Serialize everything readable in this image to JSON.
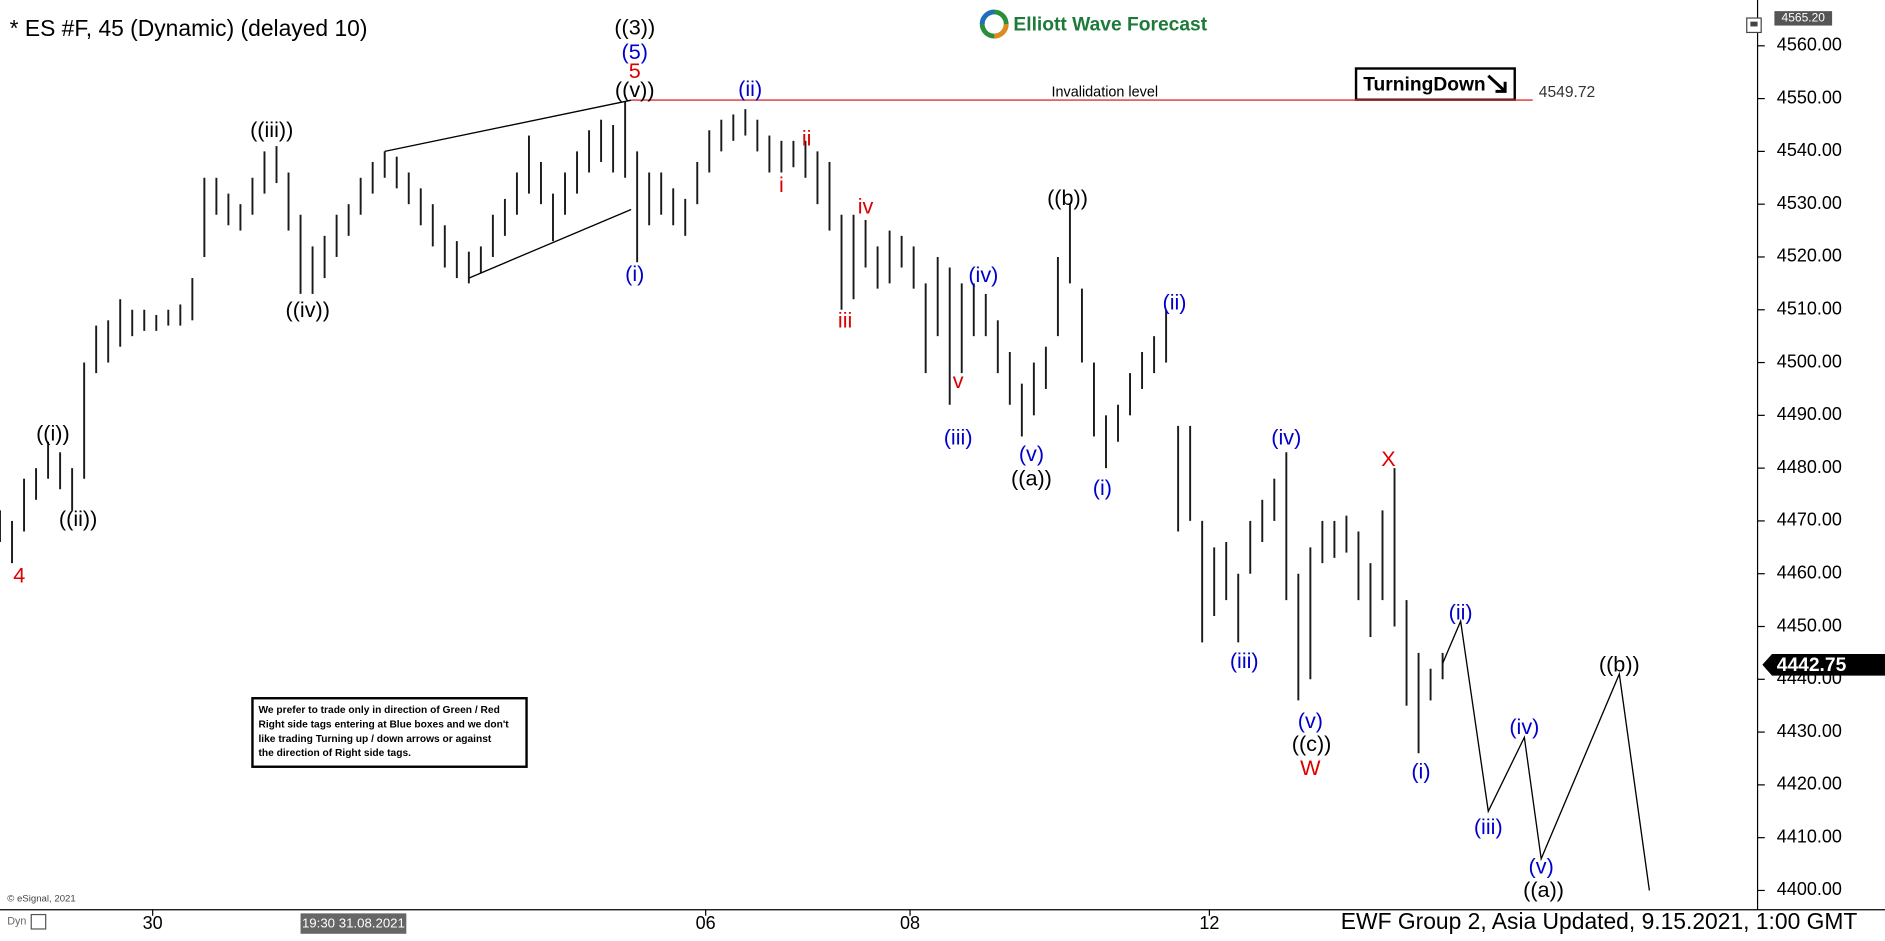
{
  "chart_data": {
    "type": "price-bars",
    "title": "* ES #F, 45 (Dynamic) (delayed 10)",
    "brand": "Elliott Wave Forecast",
    "footer": "EWF Group 2, Asia Updated, 9.15.2021, 1:00 GMT",
    "copyright": "© eSignal, 2021",
    "interval_label": "Dyn",
    "bar_color": "#1a1a1a",
    "xlim": [
      0,
      146
    ],
    "ylim": [
      4396.8,
      4566.4
    ],
    "xticks": [
      {
        "value": 12.7,
        "label": "30"
      },
      {
        "value": 58.7,
        "label": "06"
      },
      {
        "value": 75.7,
        "label": "08"
      },
      {
        "value": 100.6,
        "label": "12"
      }
    ],
    "cursor_label": {
      "value": 29.4,
      "label": "19:30 31.08.2021"
    },
    "yticks": [
      {
        "value": 4400,
        "label": "4400.00"
      },
      {
        "value": 4410,
        "label": "4410.00"
      },
      {
        "value": 4420,
        "label": "4420.00"
      },
      {
        "value": 4430,
        "label": "4430.00"
      },
      {
        "value": 4440,
        "label": "4440.00"
      },
      {
        "value": 4450,
        "label": "4450.00"
      },
      {
        "value": 4460,
        "label": "4460.00"
      },
      {
        "value": 4470,
        "label": "4470.00"
      },
      {
        "value": 4480,
        "label": "4480.00"
      },
      {
        "value": 4490,
        "label": "4490.00"
      },
      {
        "value": 4500,
        "label": "4500.00"
      },
      {
        "value": 4510,
        "label": "4510.00"
      },
      {
        "value": 4520,
        "label": "4520.00"
      },
      {
        "value": 4530,
        "label": "4530.00"
      },
      {
        "value": 4540,
        "label": "4540.00"
      },
      {
        "value": 4550,
        "label": "4550.00"
      },
      {
        "value": 4560,
        "label": "4560.00"
      }
    ],
    "high_marker": {
      "value": 4565.2,
      "label": "4565.20"
    },
    "last_price": 4442.75,
    "bars": {
      "x": [
        0,
        1,
        2,
        3,
        4,
        5,
        6,
        7,
        8,
        9,
        10,
        11,
        12,
        13,
        14,
        15,
        16,
        17,
        18,
        19,
        20,
        21,
        22,
        23,
        24,
        25,
        26,
        27,
        28,
        29,
        30,
        31,
        32,
        33,
        34,
        35,
        36,
        37,
        38,
        39,
        40,
        41,
        42,
        43,
        44,
        45,
        46,
        47,
        48,
        49,
        50,
        51,
        52,
        53,
        54,
        55,
        56,
        57,
        58,
        59,
        60,
        61,
        62,
        63,
        64,
        65,
        66,
        67,
        68,
        69,
        70,
        71,
        72,
        73,
        74,
        75,
        76,
        77,
        78,
        79,
        80,
        81,
        82,
        83,
        84,
        85,
        86,
        87,
        88,
        89,
        90,
        91,
        92,
        93,
        94,
        95,
        96,
        97,
        98,
        99,
        100,
        101,
        102,
        103,
        104,
        105,
        106,
        107,
        108,
        109,
        110,
        111,
        112,
        113,
        114,
        115,
        116,
        117,
        118,
        119,
        120
      ],
      "high": [
        4472,
        4470,
        4478,
        4480,
        4485,
        4483,
        4480,
        4500,
        4507,
        4508,
        4512,
        4510,
        4510,
        4509,
        4510,
        4511,
        4516,
        4535,
        4535,
        4532,
        4530,
        4535,
        4540,
        4541,
        4536,
        4528,
        4522,
        4524,
        4528,
        4530,
        4535,
        4538,
        4540,
        4539,
        4536,
        4533,
        4530,
        4526,
        4523,
        4521,
        4522,
        4528,
        4531,
        4536,
        4543,
        4538,
        4532,
        4536,
        4540,
        4544,
        4546,
        4545,
        4549.5,
        4540,
        4536,
        4536,
        4533,
        4531,
        4538,
        4544,
        4546,
        4547,
        4548,
        4546,
        4543,
        4542,
        4542,
        4542,
        4540,
        4538,
        4528,
        4528,
        4527,
        4522,
        4525,
        4524,
        4522,
        4515,
        4520,
        4518,
        4515,
        4515,
        4513,
        4508,
        4502,
        4496,
        4500,
        4503,
        4520,
        4530,
        4514,
        4500,
        4490,
        4492,
        4498,
        4502,
        4505,
        4510,
        4488,
        4488,
        4470,
        4465,
        4466,
        4460,
        4470,
        4474,
        4478,
        4483,
        4460,
        4465,
        4470,
        4470,
        4471,
        4468,
        4462,
        4472,
        4480,
        4455,
        4445,
        4442,
        4445
      ],
      "low": [
        4466,
        4462,
        4468,
        4474,
        4478,
        4476,
        4472,
        4478,
        4498,
        4500,
        4503,
        4505,
        4506,
        4506,
        4507,
        4507,
        4508,
        4520,
        4528,
        4526,
        4525,
        4528,
        4532,
        4534,
        4525,
        4513,
        4513,
        4516,
        4520,
        4524,
        4528,
        4532,
        4535,
        4533,
        4530,
        4526,
        4522,
        4518,
        4516,
        4515,
        4517,
        4520,
        4524,
        4528,
        4532,
        4530,
        4523,
        4528,
        4532,
        4536,
        4538,
        4536,
        4535,
        4519,
        4526,
        4528,
        4526,
        4524,
        4530,
        4536,
        4540,
        4542,
        4543,
        4540,
        4536,
        4536,
        4537,
        4535,
        4530,
        4525,
        4510,
        4512,
        4518,
        4514,
        4515,
        4518,
        4514,
        4498,
        4505,
        4492,
        4498,
        4505,
        4505,
        4498,
        4492,
        4486,
        4490,
        4495,
        4505,
        4515,
        4500,
        4486,
        4480,
        4485,
        4490,
        4495,
        4498,
        4500,
        4468,
        4470,
        4447,
        4452,
        4455,
        4447,
        4460,
        4466,
        4470,
        4455,
        4436,
        4440,
        4462,
        4463,
        4464,
        4455,
        4448,
        4455,
        4450,
        4435,
        4426,
        4436,
        4440
      ]
    },
    "lines": [
      {
        "x": [
          32,
          52.5
        ],
        "y": [
          4540,
          4549.7
        ],
        "color": "#000000"
      },
      {
        "x": [
          39,
          52.5
        ],
        "y": [
          4516,
          4529
        ],
        "color": "#000000"
      },
      {
        "x": [
          120,
          121.5,
          123.8,
          126.8,
          128.2,
          134.7,
          137.2
        ],
        "y": [
          4443,
          4451,
          4415,
          4429,
          4406,
          4441,
          4400
        ],
        "color": "#000000"
      }
    ],
    "invalidation": {
      "label": "Invalidation level",
      "value": 4549.72,
      "x": [
        52.5,
        127.5
      ],
      "color": "#e03030"
    },
    "turning_tag": "TurningDown",
    "disclaimer": [
      "We prefer to trade only in direction of Green / Red",
      "Right side tags entering at Blue boxes and we don't",
      "like trading Turning up / down arrows or against",
      "the direction of Right side tags."
    ],
    "annotations": [
      {
        "text": "4",
        "x": 1.6,
        "y": 4459.4,
        "color": "#dd0000"
      },
      {
        "text": "((i))",
        "x": 4.4,
        "y": 4486.3,
        "color": "#000000"
      },
      {
        "text": "((ii))",
        "x": 6.5,
        "y": 4470.1,
        "color": "#000000"
      },
      {
        "text": "((iii))",
        "x": 22.6,
        "y": 4543.8,
        "color": "#000000"
      },
      {
        "text": "((iv))",
        "x": 25.6,
        "y": 4509.7,
        "color": "#000000"
      },
      {
        "text": "((3))",
        "x": 52.8,
        "y": 4563.2,
        "color": "#000000"
      },
      {
        "text": "(5)",
        "x": 52.8,
        "y": 4558.6,
        "color": "#0000cc"
      },
      {
        "text": "5",
        "x": 52.8,
        "y": 4555,
        "color": "#dd0000"
      },
      {
        "text": "((v))",
        "x": 52.8,
        "y": 4551.4,
        "color": "#000000"
      },
      {
        "text": "(i)",
        "x": 52.8,
        "y": 4516.5,
        "color": "#0000cc"
      },
      {
        "text": "(ii)",
        "x": 62.4,
        "y": 4551.6,
        "color": "#0000cc"
      },
      {
        "text": "i",
        "x": 65,
        "y": 4533.4,
        "color": "#dd0000"
      },
      {
        "text": "ii",
        "x": 67.1,
        "y": 4542.2,
        "color": "#dd0000"
      },
      {
        "text": "iii",
        "x": 70.3,
        "y": 4507.7,
        "color": "#dd0000"
      },
      {
        "text": "iv",
        "x": 72,
        "y": 4529.3,
        "color": "#dd0000"
      },
      {
        "text": "v",
        "x": 79.7,
        "y": 4496.3,
        "color": "#dd0000"
      },
      {
        "text": "(iii)",
        "x": 79.7,
        "y": 4485.6,
        "color": "#0000cc"
      },
      {
        "text": "(iv)",
        "x": 81.8,
        "y": 4516.3,
        "color": "#0000cc"
      },
      {
        "text": "(v)",
        "x": 85.8,
        "y": 4482.4,
        "color": "#0000cc"
      },
      {
        "text": "((a))",
        "x": 85.8,
        "y": 4477.8,
        "color": "#000000"
      },
      {
        "text": "((b))",
        "x": 88.8,
        "y": 4530.9,
        "color": "#000000"
      },
      {
        "text": "(i)",
        "x": 91.7,
        "y": 4476,
        "color": "#0000cc"
      },
      {
        "text": "(ii)",
        "x": 97.7,
        "y": 4511.1,
        "color": "#0000cc"
      },
      {
        "text": "(iii)",
        "x": 103.5,
        "y": 4443.2,
        "color": "#0000cc"
      },
      {
        "text": "(iv)",
        "x": 107,
        "y": 4485.6,
        "color": "#0000cc"
      },
      {
        "text": "(v)",
        "x": 109,
        "y": 4431.9,
        "color": "#0000cc"
      },
      {
        "text": "((c))",
        "x": 109.1,
        "y": 4427.5,
        "color": "#000000"
      },
      {
        "text": "W",
        "x": 109,
        "y": 4423,
        "color": "#dd0000"
      },
      {
        "text": "X",
        "x": 115.5,
        "y": 4481.5,
        "color": "#dd0000"
      },
      {
        "text": "(i)",
        "x": 118.2,
        "y": 4422.3,
        "color": "#0000cc"
      },
      {
        "text": "(ii)",
        "x": 121.5,
        "y": 4452.4,
        "color": "#0000cc"
      },
      {
        "text": "(iii)",
        "x": 123.8,
        "y": 4411.8,
        "color": "#0000cc"
      },
      {
        "text": "(iv)",
        "x": 126.8,
        "y": 4430.7,
        "color": "#0000cc"
      },
      {
        "text": "(v)",
        "x": 128.2,
        "y": 4404.3,
        "color": "#0000cc"
      },
      {
        "text": "((a))",
        "x": 128.4,
        "y": 4399.8,
        "color": "#000000"
      },
      {
        "text": "((b))",
        "x": 134.7,
        "y": 4442.6,
        "color": "#000000"
      }
    ]
  }
}
